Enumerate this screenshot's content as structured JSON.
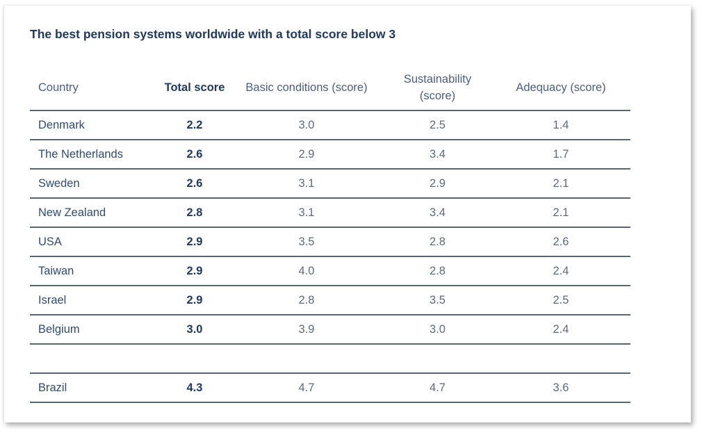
{
  "chart_data": {
    "type": "table",
    "title": "The best pension systems worldwide with a total score below 3",
    "columns": [
      "Country",
      "Total score",
      "Basic conditions (score)",
      "Sustainability (score)",
      "Adequacy (score)"
    ],
    "rows": [
      [
        "Denmark",
        "2.2",
        "3.0",
        "2.5",
        "1.4"
      ],
      [
        "The Netherlands",
        "2.6",
        "2.9",
        "3.4",
        "1.7"
      ],
      [
        "Sweden",
        "2.6",
        "3.1",
        "2.9",
        "2.1"
      ],
      [
        "New Zealand",
        "2.8",
        "3.1",
        "3.4",
        "2.1"
      ],
      [
        "USA",
        "2.9",
        "3.5",
        "2.8",
        "2.6"
      ],
      [
        "Taiwan",
        "2.9",
        "4.0",
        "2.8",
        "2.4"
      ],
      [
        "Israel",
        "2.9",
        "2.8",
        "3.5",
        "2.5"
      ],
      [
        "Belgium",
        "3.0",
        "3.9",
        "3.0",
        "2.4"
      ]
    ],
    "extra_rows": [
      [
        "Brazil",
        "4.3",
        "4.7",
        "4.7",
        "3.6"
      ]
    ]
  },
  "colors": {
    "title": "#1f3864",
    "text": "#2f4a78",
    "rule": "#5b6570"
  }
}
